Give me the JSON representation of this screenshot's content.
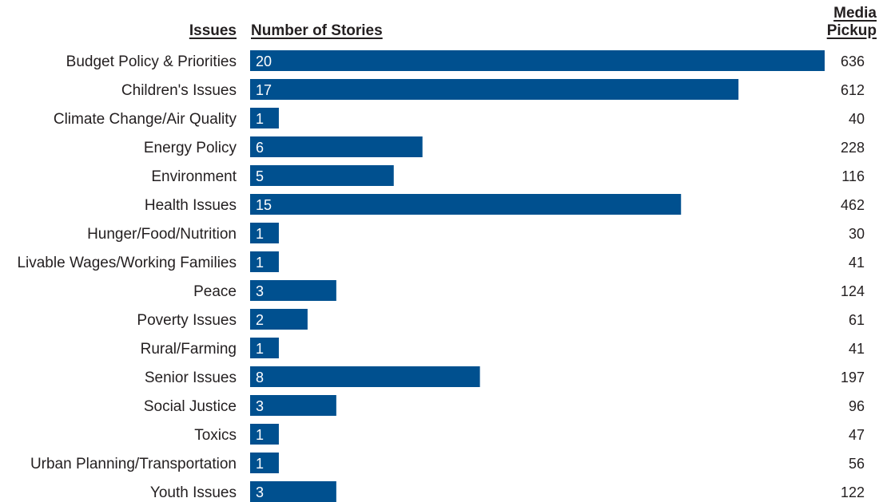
{
  "headers": {
    "issues": "Issues",
    "stories": "Number of Stories",
    "media_line1": "Media",
    "media_line2": "Pickup"
  },
  "chart_data": {
    "type": "bar",
    "orientation": "horizontal",
    "bar_color": "#00508f",
    "categories": [
      "Budget Policy & Priorities",
      "Children's Issues",
      "Climate Change/Air Quality",
      "Energy Policy",
      "Environment",
      "Health Issues",
      "Hunger/Food/Nutrition",
      "Livable Wages/Working Families",
      "Peace",
      "Poverty Issues",
      "Rural/Farming",
      "Senior Issues",
      "Social Justice",
      "Toxics",
      "Urban Planning/Transportation",
      "Youth Issues"
    ],
    "values": [
      20,
      17,
      1,
      6,
      5,
      15,
      1,
      1,
      3,
      2,
      1,
      8,
      3,
      1,
      1,
      3
    ],
    "media_pickup": [
      636,
      612,
      40,
      228,
      116,
      462,
      30,
      41,
      124,
      61,
      41,
      197,
      96,
      47,
      56,
      122
    ],
    "xlim": [
      0,
      20
    ],
    "grid": false,
    "legend": "none"
  }
}
